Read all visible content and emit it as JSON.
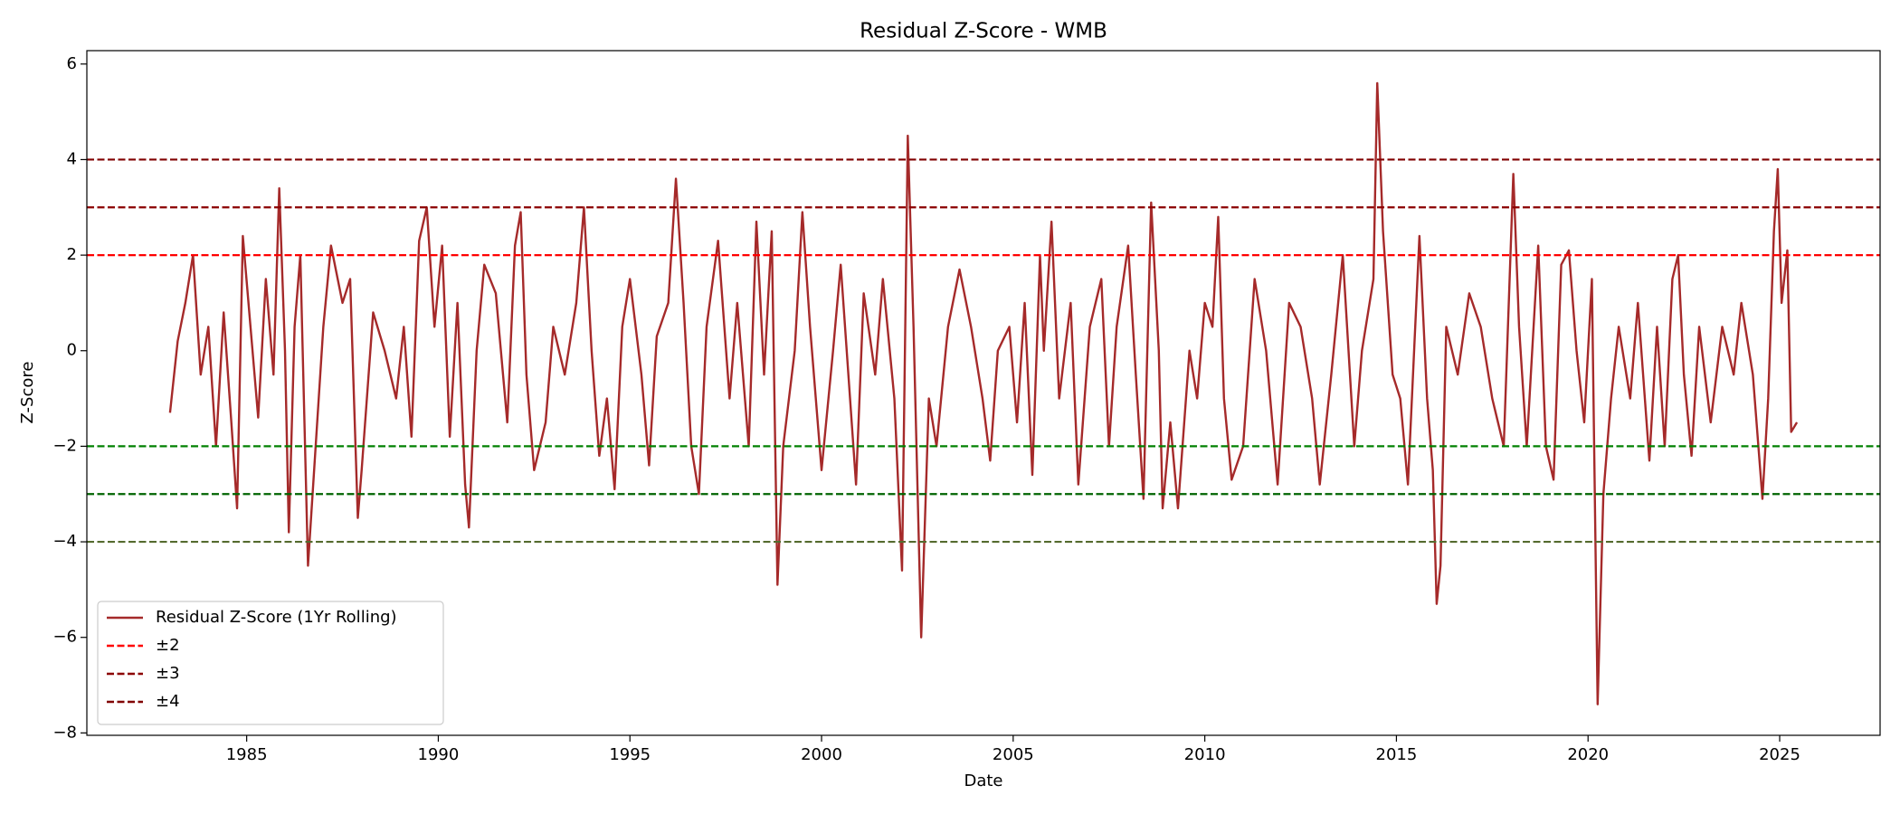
{
  "chart_data": {
    "type": "line",
    "title": "Residual Z-Score - WMB",
    "x_label": "Date",
    "y_label": "Z-Score",
    "xlim": [
      1980.83,
      2027.62
    ],
    "ylim": [
      -8.05,
      6.28
    ],
    "xticks": [
      1985,
      1990,
      1995,
      2000,
      2005,
      2010,
      2015,
      2020,
      2025
    ],
    "yticks": [
      {
        "value": -8,
        "label": "−8"
      },
      {
        "value": -6,
        "label": "−6"
      },
      {
        "value": -4,
        "label": "−4"
      },
      {
        "value": -2,
        "label": "−2"
      },
      0,
      2,
      4,
      6
    ],
    "legend": "lower left",
    "x": [
      1983.0,
      1983.2,
      1983.4,
      1983.6,
      1983.8,
      1984.0,
      1984.2,
      1984.4,
      1984.6,
      1984.75,
      1984.9,
      1985.1,
      1985.3,
      1985.5,
      1985.7,
      1985.85,
      1986.0,
      1986.1,
      1986.25,
      1986.4,
      1986.6,
      1986.8,
      1987.0,
      1987.2,
      1987.5,
      1987.7,
      1987.9,
      1988.0,
      1988.3,
      1988.6,
      1988.9,
      1989.1,
      1989.3,
      1989.5,
      1989.7,
      1989.9,
      1990.1,
      1990.3,
      1990.5,
      1990.7,
      1990.8,
      1991.0,
      1991.2,
      1991.5,
      1991.8,
      1992.0,
      1992.15,
      1992.3,
      1992.5,
      1992.8,
      1993.0,
      1993.3,
      1993.6,
      1993.8,
      1994.0,
      1994.2,
      1994.4,
      1994.6,
      1994.8,
      1995.0,
      1995.3,
      1995.5,
      1995.7,
      1996.0,
      1996.2,
      1996.4,
      1996.6,
      1996.8,
      1997.0,
      1997.3,
      1997.6,
      1997.8,
      1998.1,
      1998.3,
      1998.5,
      1998.7,
      1998.85,
      1999.0,
      1999.3,
      1999.5,
      1999.7,
      2000.0,
      2000.3,
      2000.5,
      2000.7,
      2000.9,
      2001.1,
      2001.4,
      2001.6,
      2001.9,
      2002.1,
      2002.25,
      2002.4,
      2002.6,
      2002.8,
      2003.0,
      2003.3,
      2003.6,
      2003.9,
      2004.2,
      2004.4,
      2004.6,
      2004.9,
      2005.1,
      2005.3,
      2005.5,
      2005.7,
      2005.8,
      2006.0,
      2006.2,
      2006.5,
      2006.7,
      2007.0,
      2007.3,
      2007.5,
      2007.7,
      2008.0,
      2008.2,
      2008.4,
      2008.6,
      2008.8,
      2008.9,
      2009.1,
      2009.3,
      2009.6,
      2009.8,
      2010.0,
      2010.2,
      2010.35,
      2010.5,
      2010.7,
      2011.0,
      2011.3,
      2011.6,
      2011.9,
      2012.2,
      2012.5,
      2012.8,
      2013.0,
      2013.3,
      2013.6,
      2013.9,
      2014.1,
      2014.4,
      2014.5,
      2014.65,
      2014.9,
      2015.1,
      2015.3,
      2015.6,
      2015.8,
      2015.95,
      2016.05,
      2016.15,
      2016.3,
      2016.6,
      2016.9,
      2017.2,
      2017.5,
      2017.8,
      2018.05,
      2018.2,
      2018.4,
      2018.7,
      2018.9,
      2019.1,
      2019.3,
      2019.5,
      2019.7,
      2019.9,
      2020.1,
      2020.25,
      2020.4,
      2020.6,
      2020.8,
      2021.1,
      2021.3,
      2021.6,
      2021.8,
      2022.0,
      2022.2,
      2022.35,
      2022.5,
      2022.7,
      2022.9,
      2023.2,
      2023.5,
      2023.8,
      2024.0,
      2024.3,
      2024.55,
      2024.7,
      2024.85,
      2024.95,
      2025.05,
      2025.2,
      2025.3,
      2025.45
    ],
    "series": [
      {
        "name": "Residual Z-Score (1Yr Rolling)",
        "color": "#a52a2a",
        "values": [
          -1.3,
          0.2,
          1.0,
          2.0,
          -0.5,
          0.5,
          -2.0,
          0.8,
          -1.5,
          -3.3,
          2.4,
          0.5,
          -1.4,
          1.5,
          -0.5,
          3.4,
          0.0,
          -3.8,
          0.5,
          2.0,
          -4.5,
          -2.0,
          0.5,
          2.2,
          1.0,
          1.5,
          -3.5,
          -2.5,
          0.8,
          0.0,
          -1.0,
          0.5,
          -1.8,
          2.3,
          3.0,
          0.5,
          2.2,
          -1.8,
          1.0,
          -2.8,
          -3.7,
          0.0,
          1.8,
          1.2,
          -1.5,
          2.2,
          2.9,
          -0.5,
          -2.5,
          -1.5,
          0.5,
          -0.5,
          1.0,
          3.0,
          0.0,
          -2.2,
          -1.0,
          -2.9,
          0.5,
          1.5,
          -0.5,
          -2.4,
          0.3,
          1.0,
          3.6,
          1.0,
          -2.0,
          -3.0,
          0.5,
          2.3,
          -1.0,
          1.0,
          -2.0,
          2.7,
          -0.5,
          2.5,
          -4.9,
          -2.0,
          0.0,
          2.9,
          0.5,
          -2.5,
          0.0,
          1.8,
          -0.5,
          -2.8,
          1.2,
          -0.5,
          1.5,
          -1.0,
          -4.6,
          4.5,
          0.5,
          -6.0,
          -1.0,
          -2.0,
          0.5,
          1.7,
          0.5,
          -1.0,
          -2.3,
          0.0,
          0.5,
          -1.5,
          1.0,
          -2.6,
          2.0,
          0.0,
          2.7,
          -1.0,
          1.0,
          -2.8,
          0.5,
          1.5,
          -2.0,
          0.5,
          2.2,
          -0.5,
          -3.1,
          3.1,
          0.0,
          -3.3,
          -1.5,
          -3.3,
          0.0,
          -1.0,
          1.0,
          0.5,
          2.8,
          -1.0,
          -2.7,
          -2.0,
          1.5,
          0.0,
          -2.8,
          1.0,
          0.5,
          -1.0,
          -2.8,
          -0.5,
          2.0,
          -2.0,
          0.0,
          1.5,
          5.6,
          2.5,
          -0.5,
          -1.0,
          -2.8,
          2.4,
          -1.0,
          -2.5,
          -5.3,
          -4.5,
          0.5,
          -0.5,
          1.2,
          0.5,
          -1.0,
          -2.0,
          3.7,
          0.5,
          -2.0,
          2.2,
          -2.0,
          -2.7,
          1.8,
          2.1,
          0.0,
          -1.5,
          1.5,
          -7.4,
          -3.0,
          -1.0,
          0.5,
          -1.0,
          1.0,
          -2.3,
          0.5,
          -2.0,
          1.5,
          2.0,
          -0.5,
          -2.2,
          0.5,
          -1.5,
          0.5,
          -0.5,
          1.0,
          -0.5,
          -3.1,
          -1.0,
          2.5,
          3.8,
          1.0,
          2.1,
          -1.7,
          -1.5
        ]
      }
    ],
    "levels": [
      {
        "name": "±2",
        "values": [
          2,
          -2
        ],
        "colors": [
          "#ff0000",
          "#008000"
        ]
      },
      {
        "name": "±3",
        "values": [
          3,
          -3
        ],
        "colors": [
          "#8b0000",
          "#006400"
        ]
      },
      {
        "name": "±4",
        "values": [
          4,
          -4
        ],
        "colors": [
          "#800000",
          "#556b2f"
        ]
      }
    ]
  }
}
